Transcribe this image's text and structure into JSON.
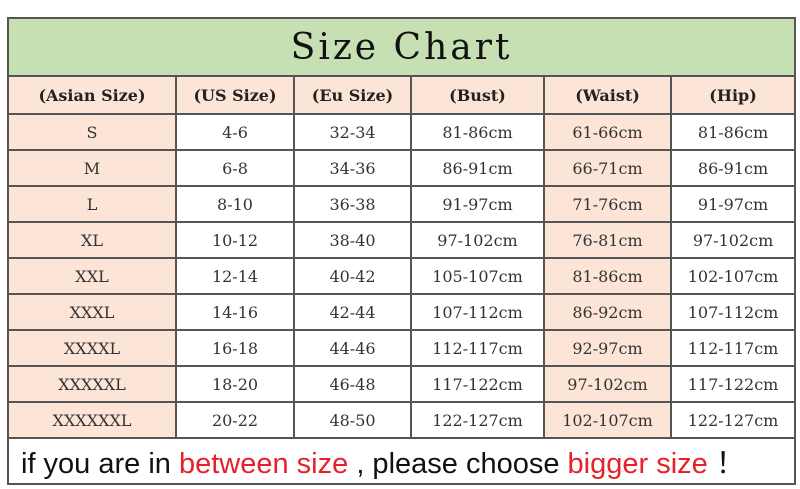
{
  "title": "Size Chart",
  "headers": [
    "(Asian Size)",
    "(US Size)",
    "(Eu Size)",
    "(Bust)",
    "(Waist)",
    "(Hip)"
  ],
  "rows": [
    [
      "S",
      "4-6",
      "32-34",
      "81-86cm",
      "61-66cm",
      "81-86cm"
    ],
    [
      "M",
      "6-8",
      "34-36",
      "86-91cm",
      "66-71cm",
      "86-91cm"
    ],
    [
      "L",
      "8-10",
      "36-38",
      "91-97cm",
      "71-76cm",
      "91-97cm"
    ],
    [
      "XL",
      "10-12",
      "38-40",
      "97-102cm",
      "76-81cm",
      "97-102cm"
    ],
    [
      "XXL",
      "12-14",
      "40-42",
      "105-107cm",
      "81-86cm",
      "102-107cm"
    ],
    [
      "XXXL",
      "14-16",
      "42-44",
      "107-112cm",
      "86-92cm",
      "107-112cm"
    ],
    [
      "XXXXL",
      "16-18",
      "44-46",
      "112-117cm",
      "92-97cm",
      "112-117cm"
    ],
    [
      "XXXXXL",
      "18-20",
      "46-48",
      "117-122cm",
      "97-102cm",
      "117-122cm"
    ],
    [
      "XXXXXXL",
      "20-22",
      "48-50",
      "122-127cm",
      "102-107cm",
      "122-127cm"
    ]
  ],
  "footer": {
    "part1": "if you are in ",
    "part2": "between size",
    "part3": " , please choose ",
    "part4": "bigger size",
    "part5": " ！"
  },
  "colors": {
    "title_bg": "#c6e0b4",
    "highlight_bg": "#fce4d6",
    "accent_red": "#e8202a"
  }
}
